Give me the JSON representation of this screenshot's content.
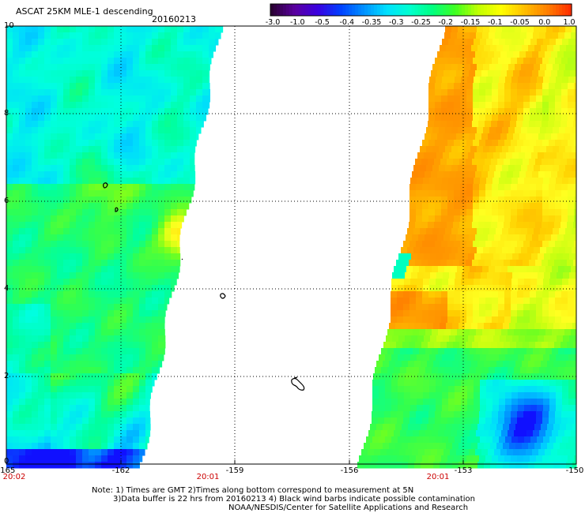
{
  "header": {
    "title": "ASCAT 25KM MLE-1 descending",
    "date": "20160213"
  },
  "colorbar": {
    "tick_labels": [
      "-3.0",
      "-1.0",
      "-0.5",
      "-0.4",
      "-0.35",
      "-0.3",
      "-0.25",
      "-0.2",
      "-0.15",
      "-0.1",
      "-0.05",
      "0.0",
      "1.0"
    ],
    "colors": [
      "#2a0033",
      "#5a00a0",
      "#3a00e0",
      "#0040ff",
      "#0090ff",
      "#00e0ff",
      "#00ffd0",
      "#00ff80",
      "#40ff20",
      "#c0ff00",
      "#ffff00",
      "#ffc000",
      "#ff8000",
      "#ff3000"
    ]
  },
  "map": {
    "y_axis_labels": [
      "10",
      "8",
      "6",
      "4",
      "2",
      "0"
    ],
    "x_axis_labels": [
      "-165",
      "-162",
      "-159",
      "-156",
      "-153",
      "-150"
    ],
    "time_labels": [
      "20:02",
      "20:01",
      "20:01"
    ]
  },
  "footer": {
    "note_line1": "Note: 1) Times are GMT 2)Times along bottom correspond to measurement at 5N",
    "note_line2": "3)Data buffer is 22 hrs from 20160213 4) Black wind barbs indicate possible contamination",
    "note_line3": "NOAA/NESDIS/Center for Satellite Applications and Research"
  }
}
